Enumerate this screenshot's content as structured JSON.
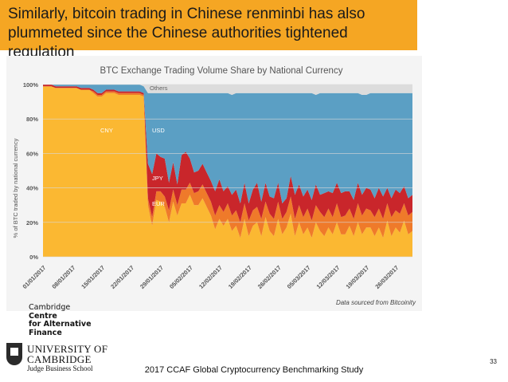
{
  "slide": {
    "title": "Similarly, bitcoin trading in Chinese renminbi has also plummeted since the Chinese authorities tightened regulation",
    "footer": "2017 CCAF Global Cryptocurrency Benchmarking Study",
    "page_number": "33",
    "logo": {
      "lines": [
        "Cambridge",
        "Centre",
        "for Alternative",
        "Finance"
      ],
      "university_line1": "UNIVERSITY OF",
      "university_line2": "CAMBRIDGE",
      "university_line3": "Judge Business School"
    }
  },
  "colors": {
    "title_bar": "#f5a623",
    "CNY": "#fbb832",
    "EUR": "#ef7a2a",
    "JPY": "#c9262b",
    "USD": "#5b9fc4",
    "Others": "#dcdcdc"
  },
  "chart_data": {
    "type": "area",
    "title": "BTC Exchange Trading Volume Share by National Currency",
    "ylabel": "% of BTC traded by national currency",
    "xlabel": "",
    "ylim": [
      0,
      100
    ],
    "yticks": [
      "0%",
      "20%",
      "40%",
      "60%",
      "80%",
      "100%"
    ],
    "xticks": [
      "01/01/2017",
      "08/01/2017",
      "15/01/2017",
      "22/01/2017",
      "29/01/2017",
      "05/02/2017",
      "12/02/2017",
      "19/02/2017",
      "26/02/2017",
      "05/03/2017",
      "12/03/2017",
      "19/03/2017",
      "26/03/2017"
    ],
    "source_note": "Data sourced from Bitcoinity",
    "stacked": true,
    "x_start": "2017-01-01",
    "x_end": "2017-03-30",
    "series": [
      {
        "name": "CNY",
        "values": [
          99,
          99,
          99,
          98,
          98,
          98,
          98,
          98,
          98,
          97,
          97,
          97,
          95,
          93,
          93,
          95,
          95,
          95,
          94,
          94,
          94,
          94,
          94,
          94,
          93,
          30,
          18,
          33,
          32,
          29,
          20,
          32,
          24,
          31,
          31,
          36,
          30,
          30,
          34,
          29,
          24,
          16,
          22,
          18,
          22,
          15,
          18,
          11,
          22,
          12,
          18,
          20,
          12,
          23,
          15,
          12,
          22,
          13,
          17,
          25,
          12,
          20,
          13,
          17,
          11,
          20,
          15,
          12,
          17,
          13,
          20,
          13,
          13,
          18,
          12,
          20,
          13,
          17,
          17,
          12,
          17,
          11,
          21,
          12,
          17,
          14,
          21,
          13,
          15
        ]
      },
      {
        "name": "EUR",
        "values": [
          0,
          0,
          0,
          0,
          0,
          0,
          0,
          0,
          0,
          0,
          0,
          0,
          1,
          1,
          1,
          1,
          1,
          1,
          1,
          1,
          1,
          1,
          1,
          1,
          1,
          4,
          5,
          5,
          6,
          6,
          7,
          7,
          6,
          8,
          8,
          7,
          7,
          8,
          8,
          8,
          8,
          8,
          8,
          8,
          9,
          9,
          9,
          9,
          9,
          9,
          9,
          9,
          10,
          9,
          10,
          10,
          10,
          9,
          9,
          10,
          10,
          10,
          10,
          11,
          10,
          10,
          11,
          11,
          11,
          10,
          11,
          10,
          11,
          10,
          10,
          11,
          11,
          11,
          10,
          11,
          11,
          11,
          10,
          11,
          10,
          11,
          10,
          11,
          11
        ]
      },
      {
        "name": "JPY",
        "values": [
          1,
          1,
          1,
          1,
          1,
          1,
          1,
          1,
          1,
          1,
          1,
          1,
          1,
          1,
          1,
          1,
          1,
          1,
          1,
          1,
          1,
          1,
          1,
          1,
          1,
          20,
          25,
          22,
          20,
          22,
          16,
          16,
          12,
          20,
          22,
          14,
          12,
          12,
          12,
          12,
          12,
          14,
          15,
          12,
          10,
          12,
          12,
          11,
          12,
          10,
          12,
          14,
          10,
          11,
          10,
          12,
          11,
          9,
          8,
          12,
          14,
          12,
          12,
          11,
          12,
          12,
          10,
          14,
          10,
          14,
          12,
          14,
          14,
          10,
          11,
          12,
          12,
          12,
          12,
          11,
          12,
          13,
          9,
          11,
          12,
          12,
          10,
          10,
          10
        ]
      },
      {
        "name": "USD",
        "values": [
          0,
          0,
          0,
          1,
          1,
          1,
          1,
          1,
          1,
          2,
          2,
          2,
          3,
          5,
          5,
          3,
          3,
          3,
          4,
          4,
          4,
          4,
          4,
          4,
          4,
          41,
          47,
          35,
          37,
          38,
          52,
          40,
          53,
          36,
          34,
          38,
          46,
          45,
          41,
          46,
          51,
          57,
          50,
          57,
          54,
          58,
          56,
          64,
          52,
          64,
          56,
          52,
          63,
          52,
          60,
          61,
          52,
          64,
          61,
          48,
          59,
          53,
          60,
          56,
          62,
          52,
          59,
          58,
          57,
          58,
          52,
          58,
          57,
          57,
          62,
          52,
          58,
          54,
          56,
          61,
          55,
          60,
          55,
          61,
          56,
          58,
          54,
          61,
          59
        ]
      },
      {
        "name": "Others",
        "values": [
          0,
          0,
          0,
          0,
          0,
          0,
          0,
          0,
          0,
          0,
          0,
          0,
          0,
          0,
          0,
          0,
          0,
          0,
          0,
          0,
          0,
          0,
          0,
          0,
          1,
          5,
          5,
          5,
          5,
          5,
          5,
          5,
          5,
          5,
          5,
          5,
          5,
          5,
          5,
          5,
          5,
          5,
          5,
          5,
          5,
          6,
          5,
          5,
          5,
          5,
          5,
          5,
          5,
          5,
          5,
          5,
          5,
          5,
          5,
          5,
          5,
          5,
          5,
          5,
          5,
          6,
          5,
          5,
          5,
          5,
          5,
          5,
          5,
          5,
          5,
          5,
          6,
          6,
          5,
          5,
          5,
          5,
          5,
          5,
          5,
          5,
          5,
          5,
          5
        ]
      }
    ],
    "area_labels": [
      "CNY",
      "USD",
      "JPY",
      "EUR",
      "Others"
    ]
  }
}
